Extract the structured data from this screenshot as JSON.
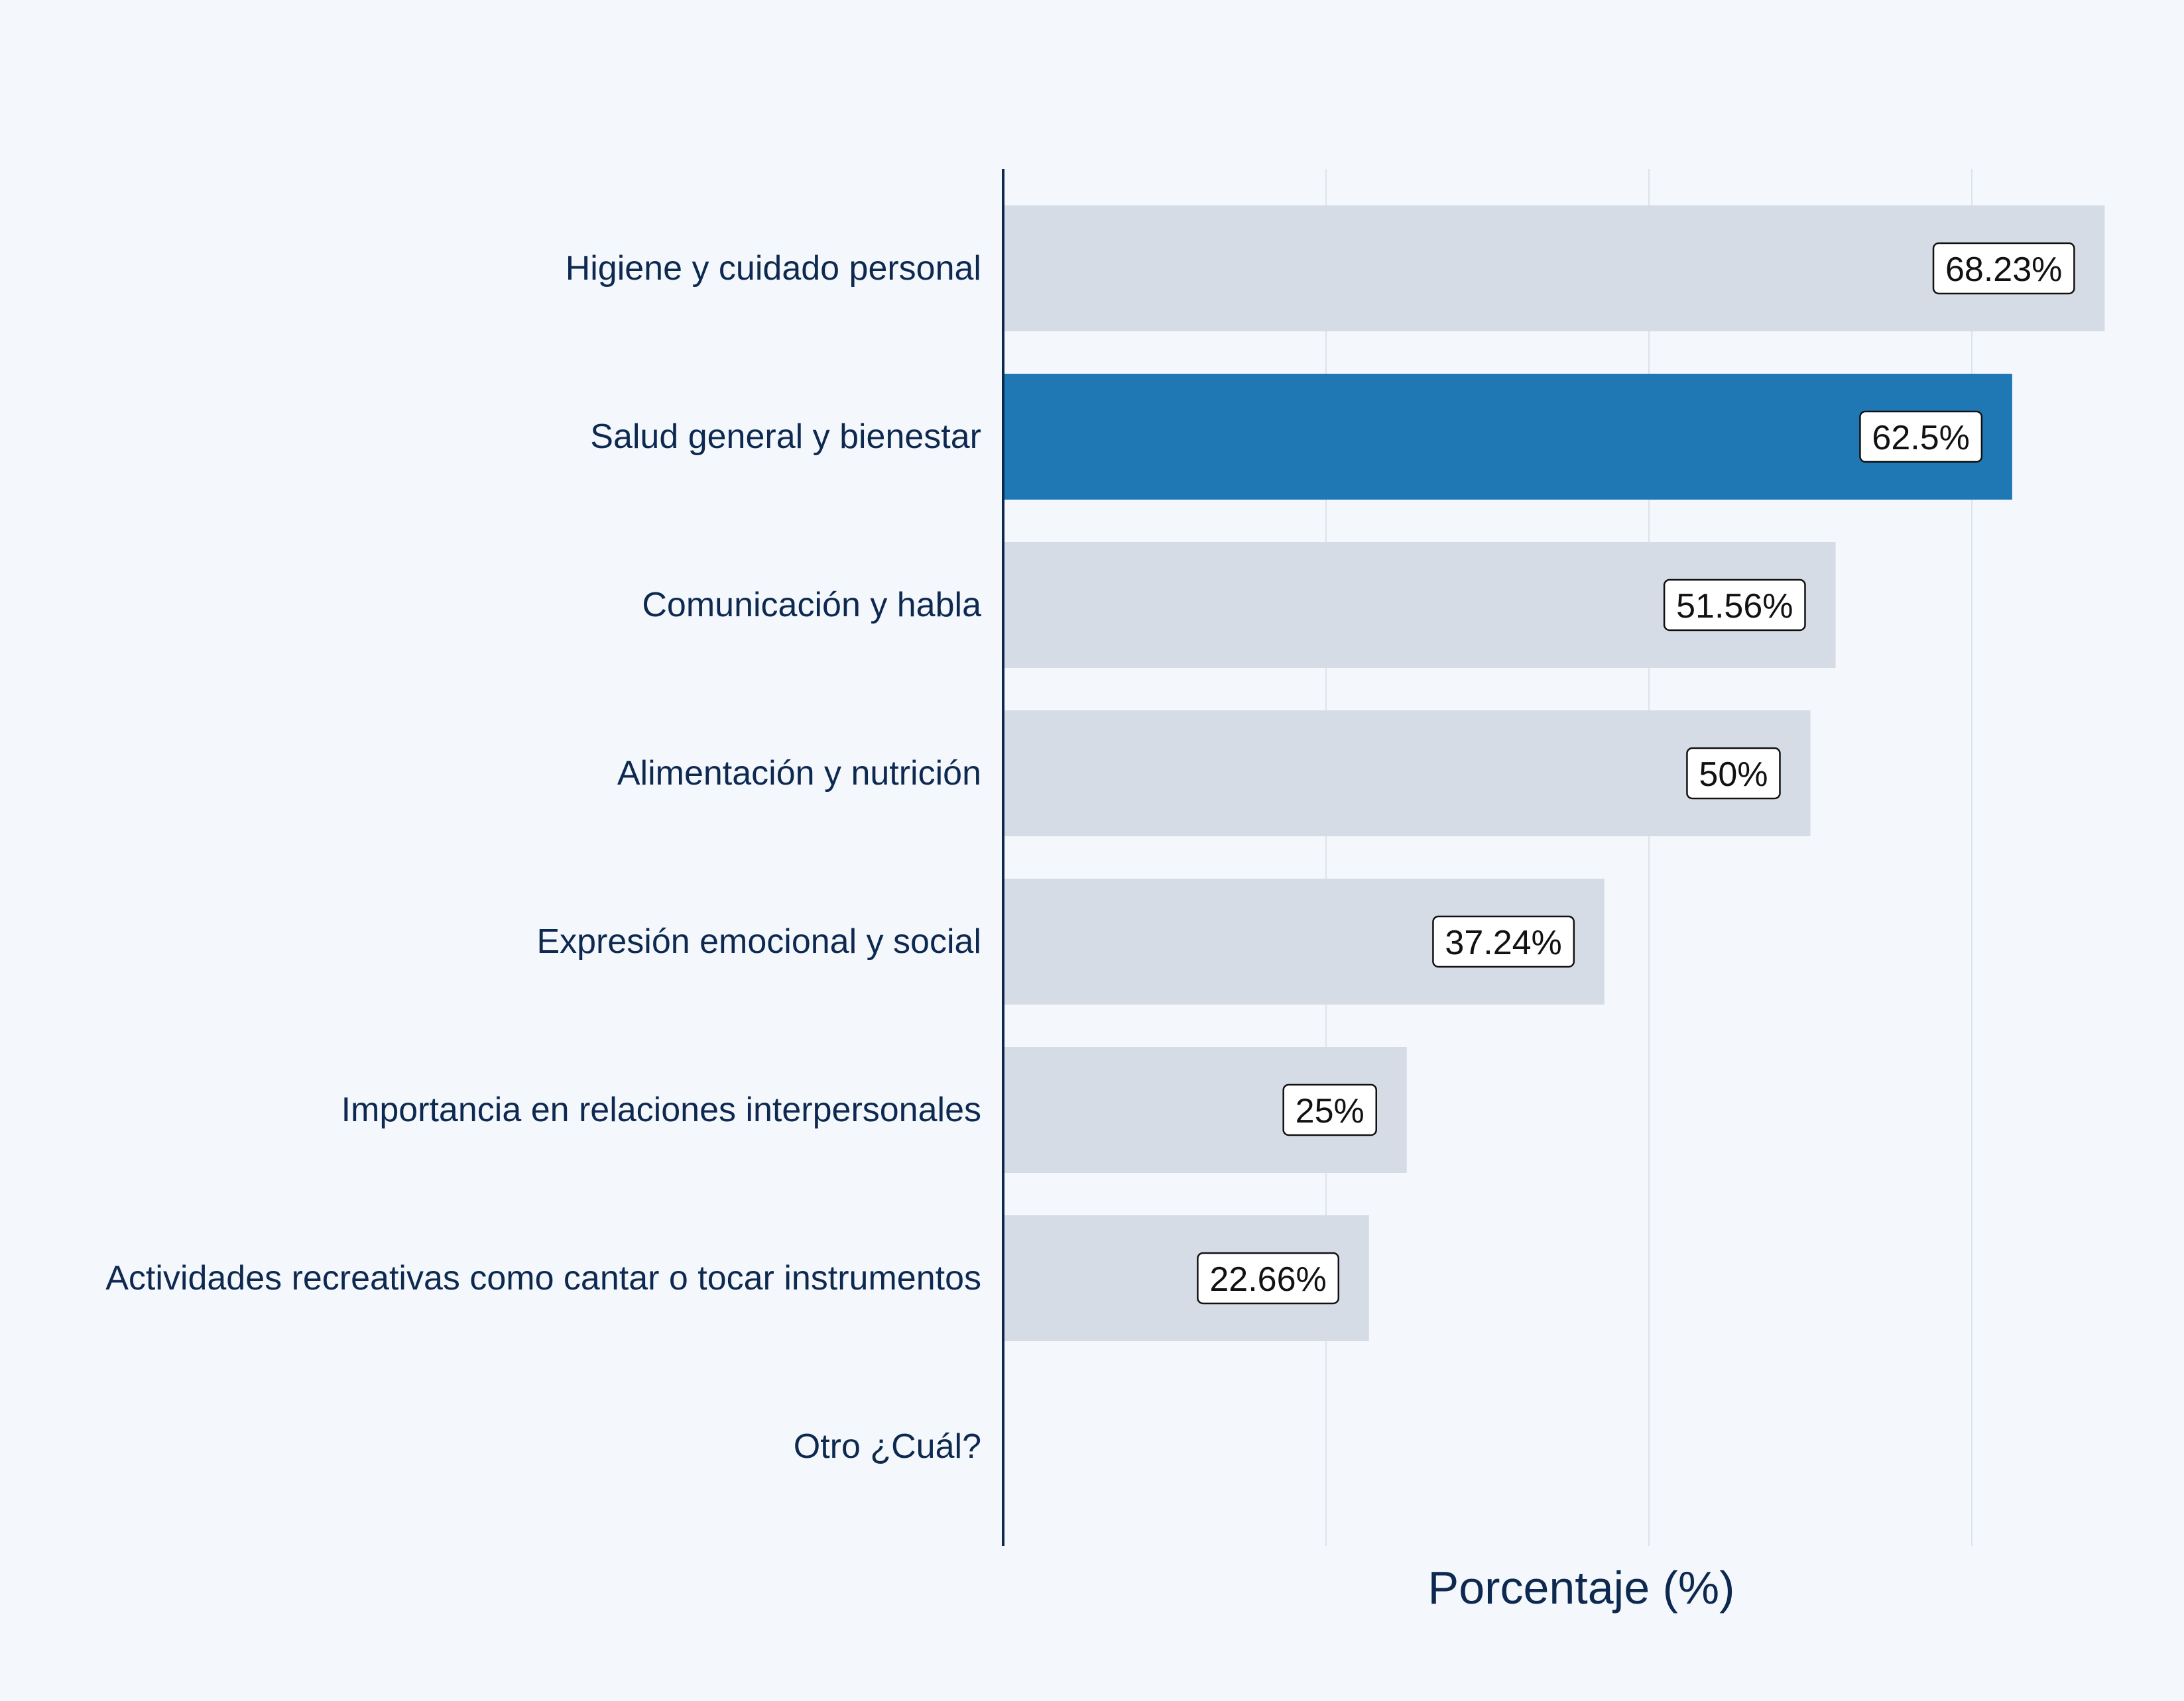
{
  "chart_data": {
    "type": "bar",
    "orientation": "horizontal",
    "title": "",
    "xlabel": "Porcentaje (%)",
    "ylabel": "",
    "xlim": [
      0,
      72
    ],
    "grid": "vertical",
    "highlight_index": 1,
    "colors": {
      "background": "#f4f8fc",
      "bar": "#d5dce6",
      "highlight": "#1f77b4",
      "grid": "#dde3ea",
      "axis": "#0e2950",
      "text": "#0e2950"
    },
    "categories": [
      "Higiene y cuidado personal",
      "Salud general y bienestar",
      "Comunicación y habla",
      "Alimentación y nutrición",
      "Expresión emocional y social",
      "Importancia en relaciones interpersonales",
      "Actividades recreativas como cantar o tocar instrumentos",
      "Otro ¿Cuál?"
    ],
    "values": [
      68.23,
      62.5,
      51.56,
      50,
      37.24,
      25,
      22.66,
      0
    ],
    "data_labels": [
      "68.23%",
      "62.5%",
      "51.56%",
      "50%",
      "37.24%",
      "25%",
      "22.66%",
      ""
    ]
  }
}
